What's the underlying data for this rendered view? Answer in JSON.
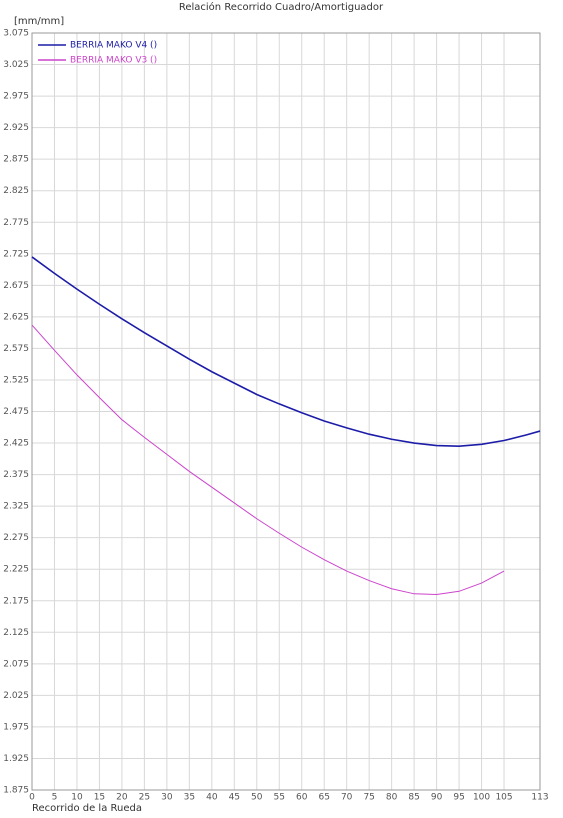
{
  "chart_data": {
    "type": "line",
    "title": "Relación Recorrido Cuadro/Amortiguador",
    "y_label": "[mm/mm]",
    "x_label": "Recorrido de la Rueda",
    "x": [
      0,
      5,
      10,
      15,
      20,
      25,
      30,
      35,
      40,
      45,
      50,
      55,
      60,
      65,
      70,
      75,
      80,
      85,
      90,
      95,
      100,
      105,
      110,
      113
    ],
    "series": [
      {
        "name": "BERRIA MAKO V4 ()",
        "color": "#1c1ca8",
        "values": [
          2.72,
          2.694,
          2.669,
          2.645,
          2.622,
          2.6,
          2.579,
          2.558,
          2.538,
          2.52,
          2.502,
          2.487,
          2.473,
          2.46,
          2.449,
          2.439,
          2.431,
          2.425,
          2.421,
          2.42,
          2.423,
          2.429,
          2.438,
          2.444
        ]
      },
      {
        "name": "BERRIA MAKO V3 ()",
        "color": "#cc44cc",
        "values": [
          2.612,
          2.572,
          2.533,
          2.497,
          2.462,
          2.434,
          2.407,
          2.38,
          2.355,
          2.33,
          2.305,
          2.282,
          2.26,
          2.24,
          2.222,
          2.207,
          2.194,
          2.186,
          2.185,
          2.19,
          2.203,
          2.222,
          null,
          null
        ]
      }
    ],
    "xlim": [
      0,
      113
    ],
    "xticks": [
      0,
      5,
      10,
      15,
      20,
      25,
      30,
      35,
      40,
      45,
      50,
      55,
      60,
      65,
      70,
      75,
      80,
      85,
      90,
      95,
      100,
      105,
      113
    ],
    "ylim": [
      1.875,
      3.075
    ],
    "yticks": [
      1.875,
      1.925,
      1.975,
      2.025,
      2.075,
      2.125,
      2.175,
      2.225,
      2.275,
      2.325,
      2.375,
      2.425,
      2.475,
      2.525,
      2.575,
      2.625,
      2.675,
      2.725,
      2.775,
      2.825,
      2.875,
      2.925,
      2.975,
      3.025,
      3.075
    ],
    "grid": true,
    "legend": "top-left"
  }
}
